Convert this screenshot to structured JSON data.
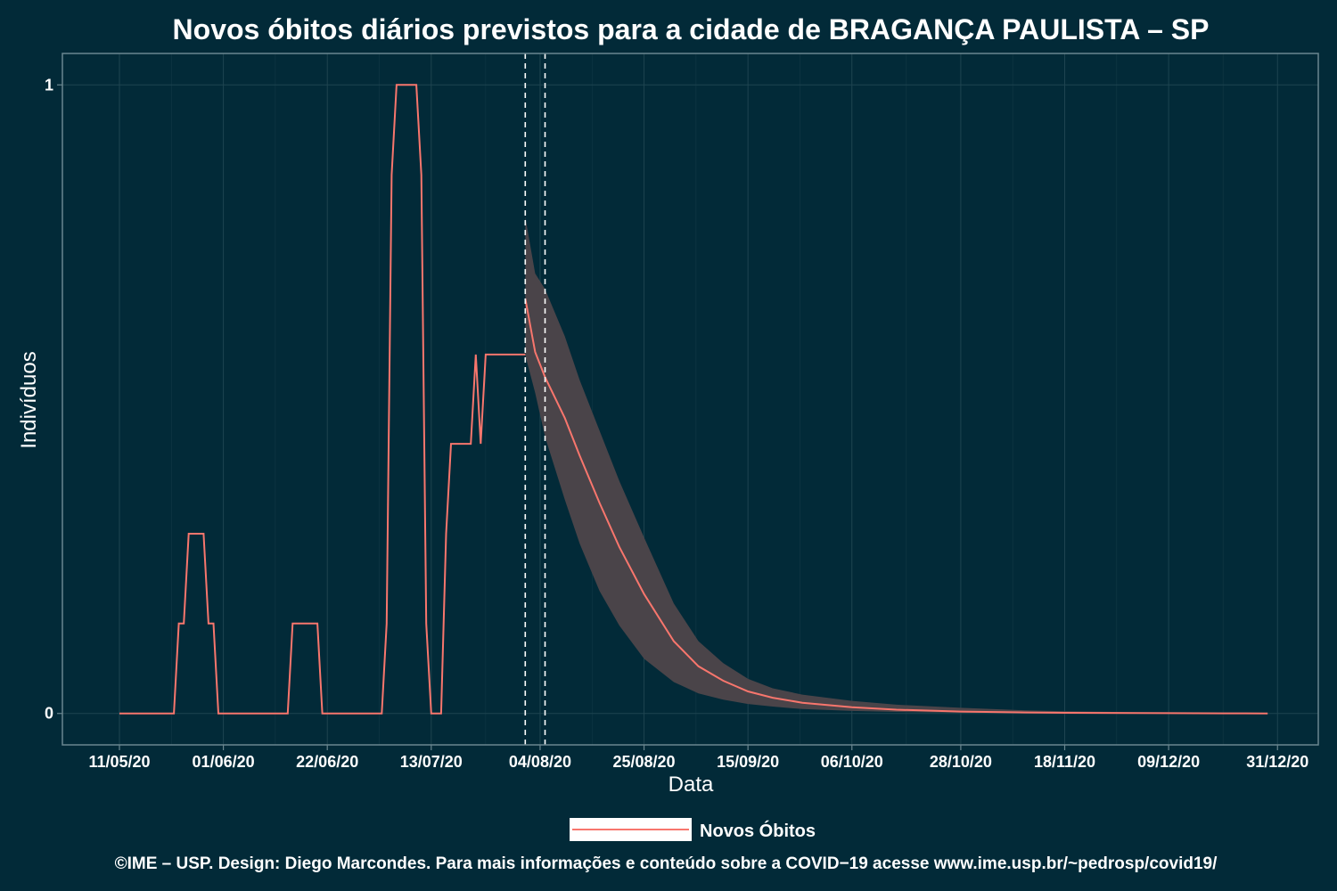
{
  "chart_data": {
    "type": "line",
    "title": "Novos óbitos diários previstos para a cidade de BRAGANÇA PAULISTA – SP",
    "xlabel": "Data",
    "ylabel": "Indivíduos",
    "caption": "©IME – USP. Design: Diego Marcondes. Para mais informações e conteúdo sobre a COVID−19 acesse www.ime.usp.br/~pedrosp/covid19/",
    "x_start_label": "11/05/20",
    "ylim": [
      -0.05,
      1.05
    ],
    "y_ticks": [
      0,
      1
    ],
    "y_tick_labels": [
      "0",
      "1"
    ],
    "x_tick_labels": [
      "11/05/20",
      "01/06/20",
      "22/06/20",
      "13/07/20",
      "04/08/20",
      "25/08/20",
      "15/09/20",
      "06/10/20",
      "28/10/20",
      "18/11/20",
      "09/12/20",
      "31/12/20"
    ],
    "forecast_lines": [
      "01/08/20",
      "05/08/20"
    ],
    "grid": true,
    "legend": {
      "position": "bottom",
      "entries": [
        "Novos Óbitos"
      ]
    },
    "colors": {
      "background": "#022a38",
      "line": "#f8766d",
      "band": "#4a4449",
      "grid": "#1e4450",
      "frame": "#6a868f",
      "legend_key": "#ffffff"
    },
    "series": [
      {
        "name": "Novos Óbitos",
        "observed": {
          "x": [
            "11/05/20",
            "22/05/20",
            "23/05/20",
            "24/05/20",
            "25/05/20",
            "26/05/20",
            "27/05/20",
            "28/05/20",
            "29/05/20",
            "30/05/20",
            "31/05/20",
            "01/06/20",
            "03/06/20",
            "14/06/20",
            "15/06/20",
            "16/06/20",
            "17/06/20",
            "18/06/20",
            "19/06/20",
            "20/06/20",
            "21/06/20",
            "03/07/20",
            "04/07/20",
            "05/07/20",
            "06/07/20",
            "07/07/20",
            "08/07/20",
            "09/07/20",
            "10/07/20",
            "11/07/20",
            "12/07/20",
            "13/07/20",
            "15/07/20",
            "16/07/20",
            "17/07/20",
            "18/07/20",
            "19/07/20",
            "20/07/20",
            "21/07/20",
            "22/07/20",
            "23/07/20",
            "24/07/20",
            "25/07/20",
            "26/07/20",
            "27/07/20",
            "28/07/20",
            "29/07/20",
            "30/07/20",
            "31/07/20",
            "01/08/20"
          ],
          "y": [
            0,
            0,
            0.143,
            0.143,
            0.286,
            0.286,
            0.286,
            0.286,
            0.143,
            0.143,
            0,
            0,
            0,
            0,
            0.143,
            0.143,
            0.143,
            0.143,
            0.143,
            0.143,
            0,
            0,
            0.143,
            0.857,
            1,
            1,
            1,
            1,
            1,
            0.857,
            0.143,
            0,
            0,
            0.286,
            0.429,
            0.429,
            0.429,
            0.429,
            0.429,
            0.571,
            0.429,
            0.571,
            0.571,
            0.571,
            0.571,
            0.571,
            0.571,
            0.571,
            0.571,
            0.571
          ]
        },
        "forecast": {
          "x": [
            "01/08/20",
            "03/08/20",
            "05/08/20",
            "09/08/20",
            "12/08/20",
            "16/08/20",
            "20/08/20",
            "25/08/20",
            "31/08/20",
            "05/09/20",
            "10/09/20",
            "15/09/20",
            "20/09/20",
            "26/09/20",
            "06/10/20",
            "15/10/20",
            "28/10/20",
            "10/11/20",
            "18/11/20",
            "01/12/20",
            "09/12/20",
            "20/12/20",
            "29/12/20"
          ],
          "y": [
            0.66,
            0.575,
            0.535,
            0.47,
            0.41,
            0.335,
            0.265,
            0.19,
            0.115,
            0.075,
            0.052,
            0.035,
            0.025,
            0.017,
            0.01,
            0.006,
            0.003,
            0.0016,
            0.001,
            0.0006,
            0.0004,
            0.0002,
            0.0001
          ],
          "lower": [
            0.57,
            0.51,
            0.44,
            0.34,
            0.27,
            0.195,
            0.14,
            0.087,
            0.05,
            0.032,
            0.022,
            0.015,
            0.011,
            0.007,
            0.004,
            0.0025,
            0.0012,
            0.0006,
            0.0004,
            0.0002,
            0.0001,
            0.0001,
            0
          ],
          "upper": [
            0.79,
            0.7,
            0.675,
            0.6,
            0.53,
            0.45,
            0.37,
            0.28,
            0.175,
            0.115,
            0.08,
            0.055,
            0.04,
            0.03,
            0.02,
            0.014,
            0.009,
            0.005,
            0.0035,
            0.002,
            0.0015,
            0.001,
            0.0008
          ]
        }
      }
    ]
  }
}
